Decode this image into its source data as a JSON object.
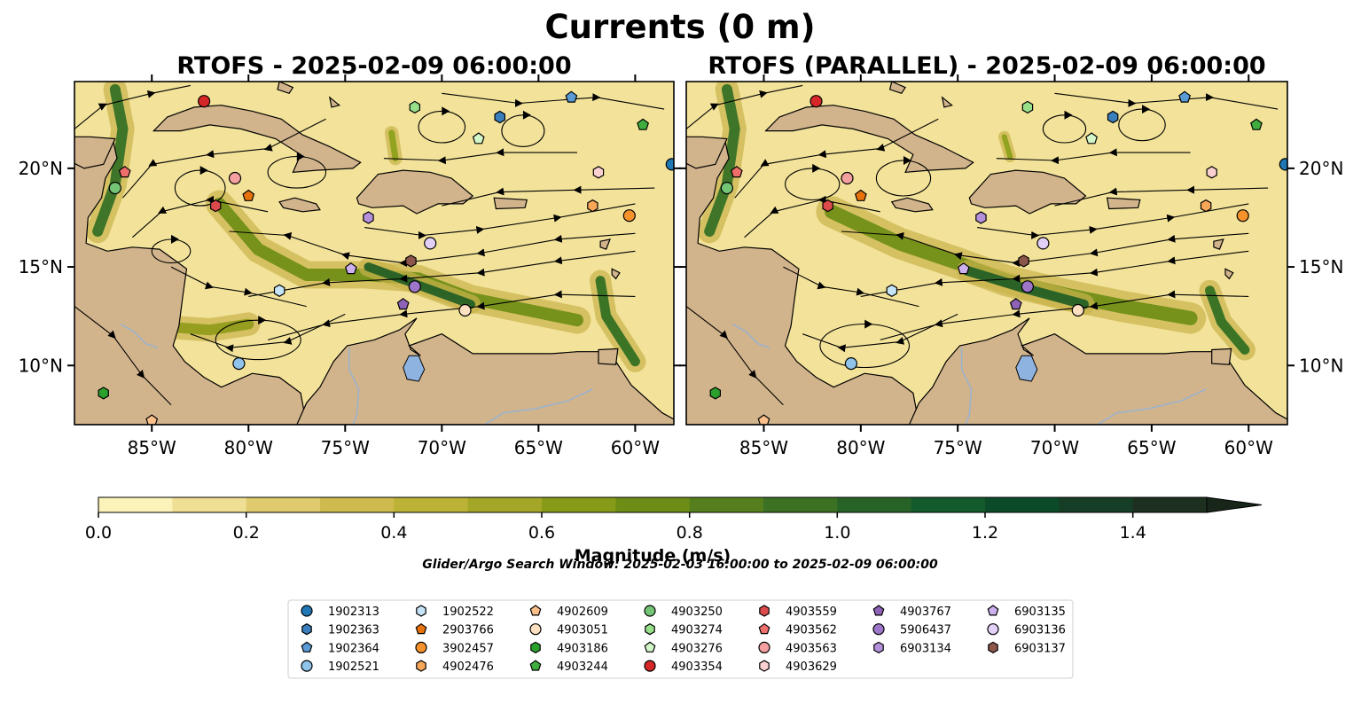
{
  "title": "Currents (0 m)",
  "panels": [
    {
      "id": "rtofs",
      "title": "RTOFS - 2025-02-09 06:00:00",
      "lat_ticks_side": "left"
    },
    {
      "id": "rtofs-parallel",
      "title": "RTOFS (PARALLEL) - 2025-02-09 06:00:00",
      "lat_ticks_side": "right"
    }
  ],
  "map": {
    "lon_range": [
      -89,
      -58
    ],
    "lat_range": [
      7,
      24.4
    ],
    "lon_ticks": [
      {
        "lon": -85,
        "label": "85°W"
      },
      {
        "lon": -80,
        "label": "80°W"
      },
      {
        "lon": -75,
        "label": "75°W"
      },
      {
        "lon": -70,
        "label": "70°W"
      },
      {
        "lon": -65,
        "label": "65°W"
      },
      {
        "lon": -60,
        "label": "60°W"
      }
    ],
    "lat_ticks": [
      {
        "lat": 10,
        "label": "10°N"
      },
      {
        "lat": 15,
        "label": "15°N"
      },
      {
        "lat": 20,
        "label": "20°N"
      }
    ],
    "ocean_base_color": "#f3e39a",
    "land_color": "#d2b48c",
    "lake_color": "#8fb3e0",
    "river_color": "#9cb3cc"
  },
  "colorbar": {
    "label": "Magnitude (m/s)",
    "min": 0.0,
    "max": 1.5,
    "extend": "max",
    "ticks": [
      {
        "value": 0.0,
        "label": "0.0"
      },
      {
        "value": 0.2,
        "label": "0.2"
      },
      {
        "value": 0.4,
        "label": "0.4"
      },
      {
        "value": 0.6,
        "label": "0.6"
      },
      {
        "value": 0.8,
        "label": "0.8"
      },
      {
        "value": 1.0,
        "label": "1.0"
      },
      {
        "value": 1.2,
        "label": "1.2"
      },
      {
        "value": 1.4,
        "label": "1.4"
      }
    ],
    "colors": [
      "#fbf3b9",
      "#efdf94",
      "#dfca6d",
      "#cfbb4d",
      "#bbb236",
      "#a3a626",
      "#879b18",
      "#6e8d16",
      "#547f1c",
      "#3c7022",
      "#276327",
      "#135b2c",
      "#0c4b2a",
      "#163d26",
      "#1d3020",
      "#182619"
    ]
  },
  "search_window": "Glider/Argo Search Window: 2025-02-03 16:00:00 to 2025-02-09 06:00:00",
  "legend": {
    "columns": [
      [
        {
          "id": "1902313",
          "shape": "circle",
          "color": "#1f77b4"
        },
        {
          "id": "1902363",
          "shape": "hexagon",
          "color": "#3a7fbd"
        },
        {
          "id": "1902364",
          "shape": "pentagon",
          "color": "#5b9bd5"
        },
        {
          "id": "1902521",
          "shape": "circle",
          "color": "#8fc3ea"
        }
      ],
      [
        {
          "id": "1902522",
          "shape": "hexagon",
          "color": "#c6e4f7"
        },
        {
          "id": "2903766",
          "shape": "pentagon",
          "color": "#e8730c"
        },
        {
          "id": "3902457",
          "shape": "circle",
          "color": "#f5922b"
        },
        {
          "id": "4902476",
          "shape": "hexagon",
          "color": "#f8a657"
        }
      ],
      [
        {
          "id": "4902609",
          "shape": "pentagon",
          "color": "#fbc08a"
        },
        {
          "id": "4903051",
          "shape": "circle",
          "color": "#fde0c2"
        },
        {
          "id": "4903186",
          "shape": "hexagon",
          "color": "#2ca02c"
        },
        {
          "id": "4903244",
          "shape": "pentagon",
          "color": "#3fae3f"
        }
      ],
      [
        {
          "id": "4903250",
          "shape": "circle",
          "color": "#74c476"
        },
        {
          "id": "4903274",
          "shape": "hexagon",
          "color": "#98df8a"
        },
        {
          "id": "4903276",
          "shape": "pentagon",
          "color": "#d4f7c9"
        },
        {
          "id": "4903354",
          "shape": "circle",
          "color": "#d62728"
        }
      ],
      [
        {
          "id": "4903559",
          "shape": "hexagon",
          "color": "#dd4a4c"
        },
        {
          "id": "4903562",
          "shape": "pentagon",
          "color": "#ef6f6c"
        },
        {
          "id": "4903563",
          "shape": "circle",
          "color": "#f4a0a1"
        },
        {
          "id": "4903629",
          "shape": "hexagon",
          "color": "#fbd0d0"
        }
      ],
      [
        {
          "id": "4903767",
          "shape": "pentagon",
          "color": "#8e63b7"
        },
        {
          "id": "5906437",
          "shape": "circle",
          "color": "#9d76c9"
        },
        {
          "id": "6903134",
          "shape": "hexagon",
          "color": "#b591dc"
        }
      ],
      [
        {
          "id": "6903135",
          "shape": "pentagon",
          "color": "#cdb0ee"
        },
        {
          "id": "6903136",
          "shape": "circle",
          "color": "#e3d0f7"
        },
        {
          "id": "6903137",
          "shape": "hexagon",
          "color": "#8c564b"
        }
      ]
    ]
  },
  "floats": [
    {
      "id": "4903354",
      "lon": -82.3,
      "lat": 23.4
    },
    {
      "id": "4903274",
      "lon": -71.4,
      "lat": 23.1
    },
    {
      "id": "1902363",
      "lon": -67.0,
      "lat": 22.6
    },
    {
      "id": "1902364",
      "lon": -63.3,
      "lat": 23.6
    },
    {
      "id": "4903244",
      "lon": -59.6,
      "lat": 22.2
    },
    {
      "id": "4903276",
      "lon": -68.1,
      "lat": 21.5
    },
    {
      "id": "1902313",
      "lon": -58.1,
      "lat": 20.2
    },
    {
      "id": "4903562",
      "lon": -86.4,
      "lat": 19.8
    },
    {
      "id": "4903250",
      "lon": -86.9,
      "lat": 19.0
    },
    {
      "id": "4903563",
      "lon": -80.7,
      "lat": 19.5
    },
    {
      "id": "2903766",
      "lon": -80.0,
      "lat": 18.6
    },
    {
      "id": "4903559",
      "lon": -81.7,
      "lat": 18.1
    },
    {
      "id": "4903629",
      "lon": -61.9,
      "lat": 19.8
    },
    {
      "id": "4902476",
      "lon": -62.2,
      "lat": 18.1
    },
    {
      "id": "3902457",
      "lon": -60.3,
      "lat": 17.6
    },
    {
      "id": "6903134",
      "lon": -73.8,
      "lat": 17.5
    },
    {
      "id": "6903136",
      "lon": -70.6,
      "lat": 16.2
    },
    {
      "id": "6903137",
      "lon": -71.6,
      "lat": 15.3
    },
    {
      "id": "6903135",
      "lon": -74.7,
      "lat": 14.9
    },
    {
      "id": "1902522",
      "lon": -78.4,
      "lat": 13.8
    },
    {
      "id": "5906437",
      "lon": -71.4,
      "lat": 14.0
    },
    {
      "id": "4903767",
      "lon": -72.0,
      "lat": 13.1
    },
    {
      "id": "4903051",
      "lon": -68.8,
      "lat": 12.8
    },
    {
      "id": "1902521",
      "lon": -80.5,
      "lat": 10.1
    },
    {
      "id": "4903186",
      "lon": -87.5,
      "lat": 8.6
    },
    {
      "id": "4902609",
      "lon": -85.0,
      "lat": 7.2
    }
  ]
}
